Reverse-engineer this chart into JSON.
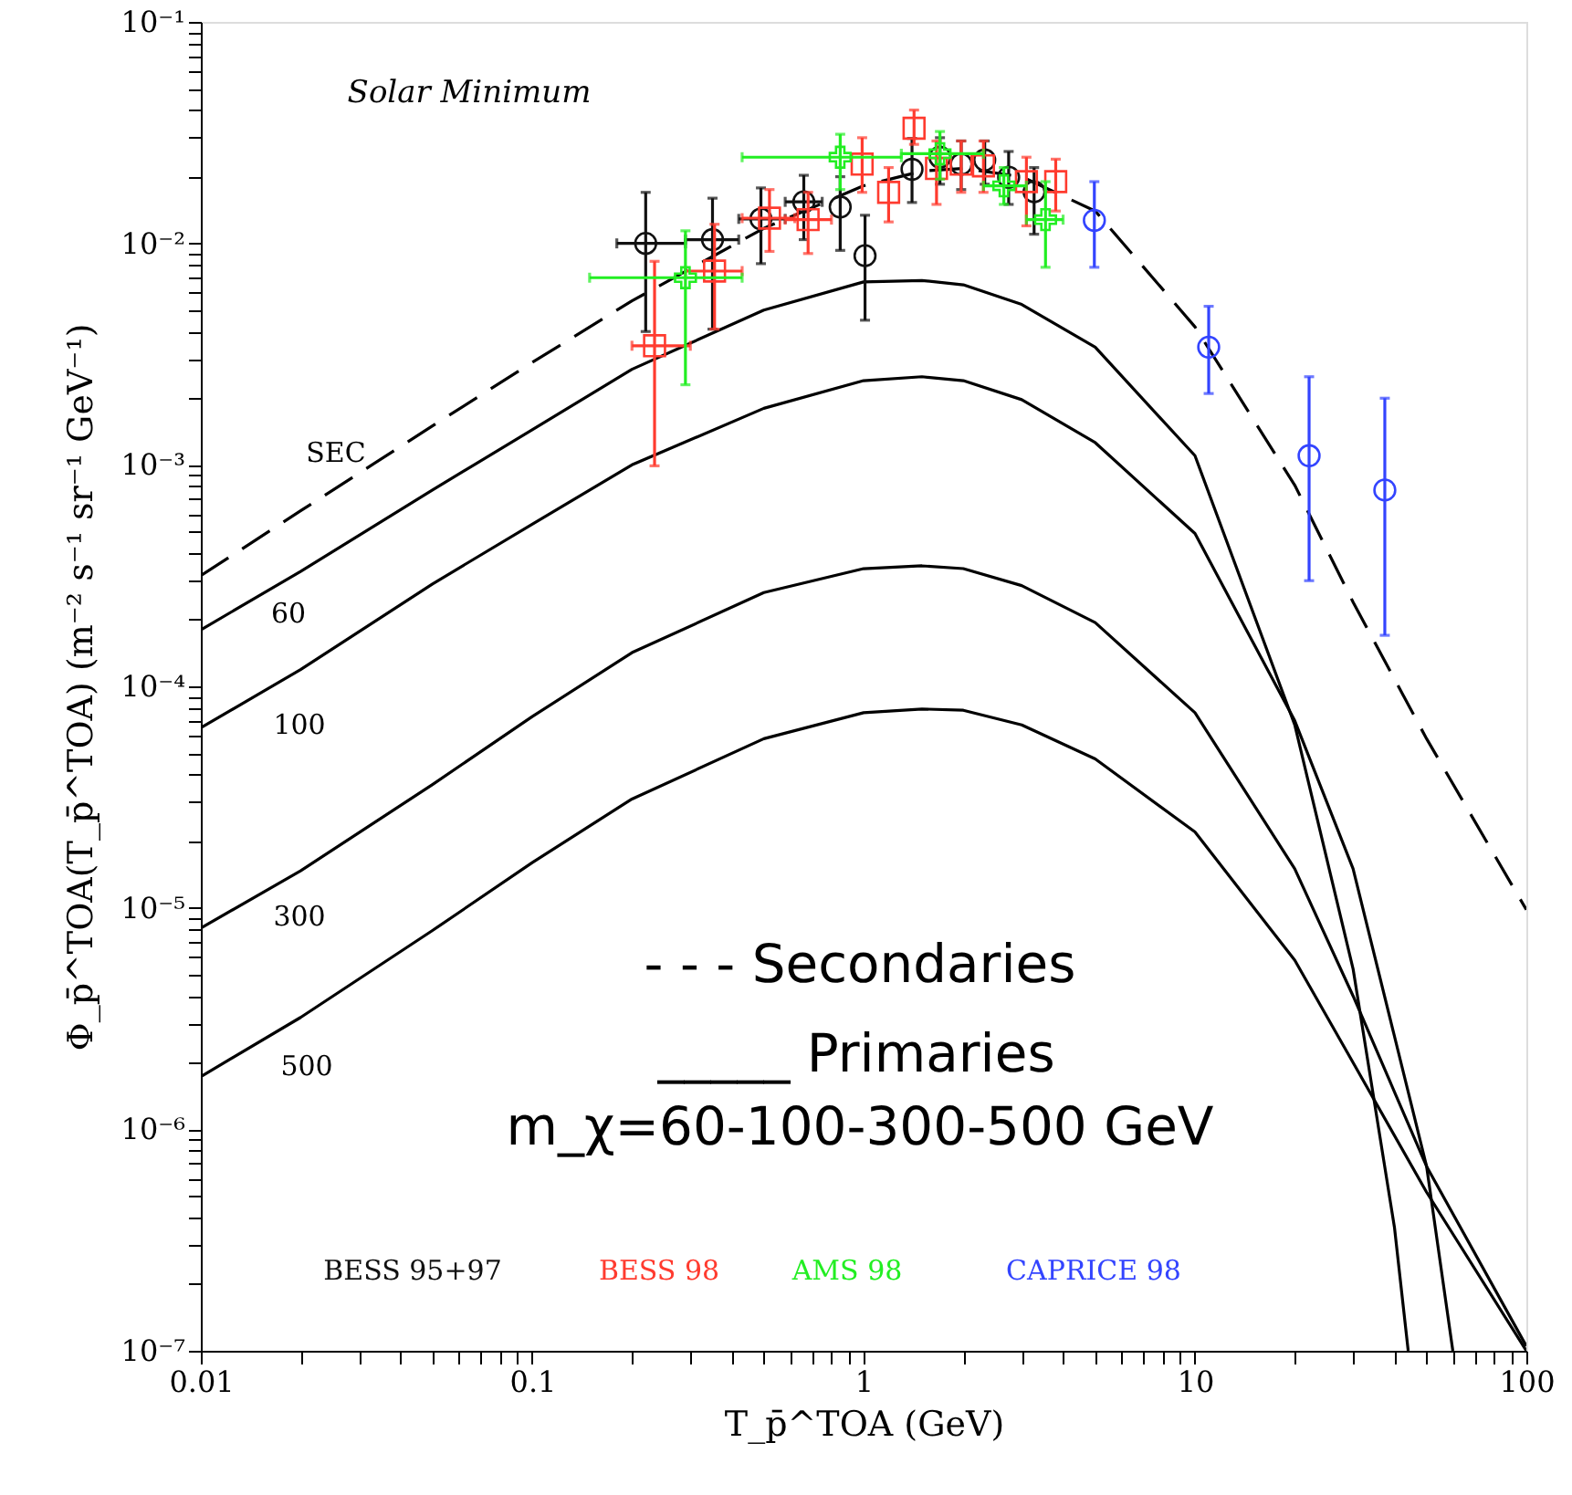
{
  "chart_data": {
    "type": "line",
    "log": "xy",
    "grid": false,
    "xlabel": "T_p̄^TOA   (GeV)",
    "ylabel": "Φ_p̄^TOA(T_p̄^TOA)   (m⁻² s⁻¹ sr⁻¹ GeV⁻¹)",
    "xlim": [
      0.01,
      100
    ],
    "ylim": [
      1e-07,
      0.1
    ],
    "xticks": [
      0.01,
      {
        "value": 0.02,
        "label": null
      },
      {
        "value": 0.03,
        "label": null
      },
      {
        "value": 0.04,
        "label": null
      },
      {
        "value": 0.05,
        "label": null
      },
      {
        "value": 0.06,
        "label": null
      },
      {
        "value": 0.07,
        "label": null
      },
      {
        "value": 0.08,
        "label": null
      },
      {
        "value": 0.09,
        "label": null
      },
      0.1,
      {
        "value": 0.2,
        "label": null
      },
      {
        "value": 0.3,
        "label": null
      },
      {
        "value": 0.4,
        "label": null
      },
      {
        "value": 0.5,
        "label": null
      },
      {
        "value": 0.6,
        "label": null
      },
      {
        "value": 0.7,
        "label": null
      },
      {
        "value": 0.8,
        "label": null
      },
      {
        "value": 0.9,
        "label": null
      },
      1,
      {
        "value": 2,
        "label": null
      },
      {
        "value": 3,
        "label": null
      },
      {
        "value": 4,
        "label": null
      },
      {
        "value": 5,
        "label": null
      },
      {
        "value": 6,
        "label": null
      },
      {
        "value": 7,
        "label": null
      },
      {
        "value": 8,
        "label": null
      },
      {
        "value": 9,
        "label": null
      },
      10,
      {
        "value": 20,
        "label": null
      },
      {
        "value": 30,
        "label": null
      },
      {
        "value": 40,
        "label": null
      },
      {
        "value": 50,
        "label": null
      },
      {
        "value": 60,
        "label": null
      },
      {
        "value": 70,
        "label": null
      },
      {
        "value": 80,
        "label": null
      },
      {
        "value": 90,
        "label": null
      },
      100
    ],
    "yticks": [
      {
        "value": 1e-07,
        "label": "10⁻⁷"
      },
      {
        "value": 2e-07,
        "label": null
      },
      {
        "value": 3e-07,
        "label": null
      },
      {
        "value": 4e-07,
        "label": null
      },
      {
        "value": 5e-07,
        "label": null
      },
      {
        "value": 6e-07,
        "label": null
      },
      {
        "value": 7e-07,
        "label": null
      },
      {
        "value": 8e-07,
        "label": null
      },
      {
        "value": 9e-07,
        "label": null
      },
      {
        "value": 1e-06,
        "label": "10⁻⁶"
      },
      {
        "value": 2e-06,
        "label": null
      },
      {
        "value": 3e-06,
        "label": null
      },
      {
        "value": 4e-06,
        "label": null
      },
      {
        "value": 5e-06,
        "label": null
      },
      {
        "value": 6e-06,
        "label": null
      },
      {
        "value": 7e-06,
        "label": null
      },
      {
        "value": 8e-06,
        "label": null
      },
      {
        "value": 9e-06,
        "label": null
      },
      {
        "value": 1e-05,
        "label": "10⁻⁵"
      },
      {
        "value": 2e-05,
        "label": null
      },
      {
        "value": 3e-05,
        "label": null
      },
      {
        "value": 4e-05,
        "label": null
      },
      {
        "value": 5e-05,
        "label": null
      },
      {
        "value": 6e-05,
        "label": null
      },
      {
        "value": 7e-05,
        "label": null
      },
      {
        "value": 8e-05,
        "label": null
      },
      {
        "value": 9e-05,
        "label": null
      },
      {
        "value": 0.0001,
        "label": "10⁻⁴"
      },
      {
        "value": 0.0002,
        "label": null
      },
      {
        "value": 0.0003,
        "label": null
      },
      {
        "value": 0.0004,
        "label": null
      },
      {
        "value": 0.0005,
        "label": null
      },
      {
        "value": 0.0006,
        "label": null
      },
      {
        "value": 0.0007,
        "label": null
      },
      {
        "value": 0.0008,
        "label": null
      },
      {
        "value": 0.0009,
        "label": null
      },
      {
        "value": 0.001,
        "label": "10⁻³"
      },
      {
        "value": 0.002,
        "label": null
      },
      {
        "value": 0.003,
        "label": null
      },
      {
        "value": 0.004,
        "label": null
      },
      {
        "value": 0.005,
        "label": null
      },
      {
        "value": 0.006,
        "label": null
      },
      {
        "value": 0.007,
        "label": null
      },
      {
        "value": 0.008,
        "label": null
      },
      {
        "value": 0.009,
        "label": null
      },
      {
        "value": 0.01,
        "label": "10⁻²"
      },
      {
        "value": 0.02,
        "label": null
      },
      {
        "value": 0.03,
        "label": null
      },
      {
        "value": 0.04,
        "label": null
      },
      {
        "value": 0.05,
        "label": null
      },
      {
        "value": 0.06,
        "label": null
      },
      {
        "value": 0.07,
        "label": null
      },
      {
        "value": 0.08,
        "label": null
      },
      {
        "value": 0.09,
        "label": null
      },
      {
        "value": 0.1,
        "label": "10⁻¹"
      }
    ],
    "annotations": [
      "Solar Minimum",
      "- - - Secondaries",
      "_____  Primaries",
      "m_χ=60-100-300-500 GeV"
    ],
    "series": [
      {
        "name": "SEC",
        "line_style": "dashed",
        "color": "#000000",
        "x": [
          0.01,
          0.02,
          0.05,
          0.1,
          0.2,
          0.5,
          1,
          1.5,
          2,
          3,
          5,
          10,
          20,
          30,
          50,
          100
        ],
        "values": [
          0.000316,
          0.00062,
          0.0015,
          0.0029,
          0.0055,
          0.0117,
          0.0182,
          0.0212,
          0.0218,
          0.02,
          0.014,
          0.0042,
          0.00081,
          0.00024,
          5.8e-05,
          9.8e-06
        ]
      },
      {
        "name": "60",
        "line_style": "solid",
        "color": "#000000",
        "x": [
          0.01,
          0.02,
          0.05,
          0.1,
          0.2,
          0.5,
          1,
          1.5,
          2,
          3,
          5,
          10,
          20,
          30,
          40,
          44
        ],
        "values": [
          0.00018,
          0.00033,
          0.00077,
          0.00144,
          0.0027,
          0.005,
          0.0067,
          0.0068,
          0.0065,
          0.0053,
          0.0034,
          0.0011,
          6.7e-05,
          5.3e-06,
          3.6e-07,
          1e-07
        ]
      },
      {
        "name": "100",
        "line_style": "solid",
        "color": "#000000",
        "x": [
          0.01,
          0.02,
          0.05,
          0.1,
          0.2,
          0.5,
          1,
          1.5,
          2,
          3,
          5,
          10,
          20,
          30,
          50,
          60
        ],
        "values": [
          6.5e-05,
          0.000119,
          0.00029,
          0.00054,
          0.001,
          0.0018,
          0.0024,
          0.0025,
          0.0024,
          0.00197,
          0.00126,
          0.00049,
          7e-05,
          1.5e-05,
          6.8e-07,
          1e-07
        ]
      },
      {
        "name": "300",
        "line_style": "solid",
        "color": "#000000",
        "x": [
          0.01,
          0.02,
          0.05,
          0.1,
          0.2,
          0.5,
          1,
          1.5,
          2,
          3,
          5,
          10,
          20,
          30,
          50,
          100
        ],
        "values": [
          8.1e-06,
          1.47e-05,
          3.6e-05,
          7.3e-05,
          0.000142,
          0.000265,
          0.00034,
          0.00035,
          0.00034,
          0.000285,
          0.000194,
          7.6e-05,
          1.5e-05,
          4e-06,
          6.8e-07,
          1.05e-07
        ]
      },
      {
        "name": "500",
        "line_style": "solid",
        "color": "#000000",
        "x": [
          0.01,
          0.02,
          0.05,
          0.1,
          0.2,
          0.5,
          1,
          1.5,
          2,
          3,
          5,
          10,
          20,
          30,
          50,
          100
        ],
        "values": [
          1.73e-06,
          3.2e-06,
          7.9e-06,
          1.6e-05,
          3.1e-05,
          5.8e-05,
          7.6e-05,
          7.9e-05,
          7.8e-05,
          6.7e-05,
          4.7e-05,
          2.2e-05,
          5.8e-06,
          2e-06,
          5.2e-07,
          1e-07
        ]
      },
      {
        "name": "BESS 95+97",
        "type": "scatter",
        "marker": "circle",
        "color": "#111111",
        "x": [
          0.22,
          0.35,
          0.49,
          0.66,
          0.85,
          1.01,
          1.4,
          1.7,
          1.97,
          2.32,
          2.74,
          3.27
        ],
        "values": [
          0.01,
          0.0104,
          0.0129,
          0.0154,
          0.0146,
          0.0088,
          0.0216,
          0.0245,
          0.0228,
          0.0238,
          0.0199,
          0.0171
        ],
        "errors": [
          [
            0.004,
            0.017
          ],
          [
            0.0041,
            0.016
          ],
          [
            0.0081,
            0.0178
          ],
          [
            0.0104,
            0.0203
          ],
          [
            0.0093,
            0.02
          ],
          [
            0.0045,
            0.0134
          ],
          [
            0.0153,
            0.0298
          ],
          [
            0.0185,
            0.03
          ],
          [
            0.0175,
            0.029
          ],
          [
            0.0185,
            0.029
          ],
          [
            0.015,
            0.026
          ],
          [
            0.011,
            0.022
          ]
        ],
        "xerrors": [
          [
            0.18,
            0.29
          ],
          [
            0.29,
            0.42
          ],
          [
            0.42,
            0.58
          ],
          [
            0.58,
            0.75
          ],
          null,
          null,
          null,
          null,
          null,
          null,
          null,
          null
        ]
      },
      {
        "name": "BESS 98",
        "type": "scatter",
        "marker": "square",
        "color": "#ff3b2f",
        "x": [
          0.234,
          0.355,
          0.52,
          0.68,
          0.99,
          1.19,
          1.42,
          1.66,
          1.97,
          2.3,
          3.1,
          3.8
        ],
        "values": [
          0.00345,
          0.0075,
          0.013,
          0.0128,
          0.0228,
          0.017,
          0.0331,
          0.0218,
          0.0228,
          0.0224,
          0.019,
          0.019
        ],
        "errors": [
          [
            0.00099,
            0.0083
          ],
          [
            0.0041,
            0.0122
          ],
          [
            0.0092,
            0.0175
          ],
          [
            0.009,
            0.017
          ],
          [
            0.017,
            0.03
          ],
          [
            0.0125,
            0.022
          ],
          [
            0.028,
            0.04
          ],
          [
            0.015,
            0.029
          ],
          [
            0.017,
            0.029
          ],
          [
            0.017,
            0.029
          ],
          [
            0.012,
            0.0245
          ],
          [
            0.014,
            0.024
          ]
        ],
        "xerrors": [
          [
            0.2,
            0.3
          ],
          [
            0.29,
            0.43
          ],
          [
            0.43,
            0.62
          ],
          [
            0.58,
            0.8
          ],
          null,
          null,
          null,
          null,
          null,
          null,
          null,
          null
        ]
      },
      {
        "name": "AMS 98",
        "type": "scatter",
        "marker": "cross",
        "color": "#22ee22",
        "x": [
          0.29,
          0.85,
          1.7,
          2.65,
          3.54
        ],
        "values": [
          0.007,
          0.0245,
          0.0254,
          0.0182,
          0.0128
        ],
        "errors": [
          [
            0.0023,
            0.0114
          ],
          [
            0.0175,
            0.0311
          ],
          [
            0.0195,
            0.032
          ],
          [
            0.015,
            0.022
          ],
          [
            0.0078,
            0.019
          ]
        ],
        "xerrors": [
          [
            0.149,
            0.43
          ],
          [
            0.43,
            1.3
          ],
          [
            1.3,
            2.3
          ],
          [
            2.3,
            3.1
          ],
          [
            3.1,
            4.0
          ]
        ]
      },
      {
        "name": "CAPRICE 98",
        "type": "scatter",
        "marker": "circle",
        "color": "#3344ff",
        "x": [
          4.97,
          11.0,
          22.1,
          37.4
        ],
        "values": [
          0.0127,
          0.0034,
          0.0011,
          0.00077
        ],
        "errors": [
          [
            0.0078,
            0.019
          ],
          [
            0.0021,
            0.0052
          ],
          [
            0.0003,
            0.0025
          ],
          [
            0.00017,
            0.002
          ]
        ]
      }
    ]
  }
}
